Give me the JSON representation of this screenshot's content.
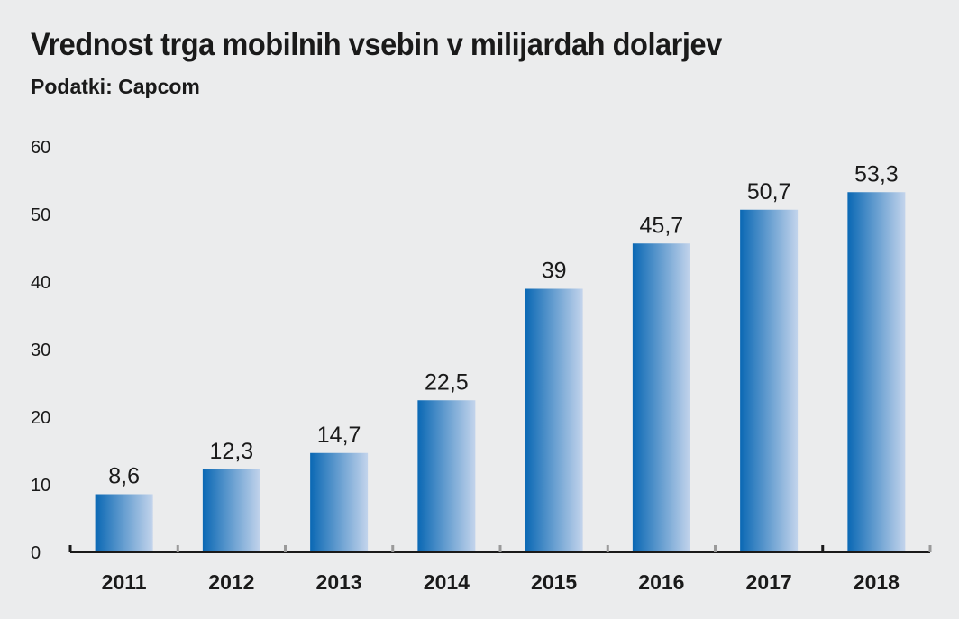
{
  "chart_data": {
    "type": "bar",
    "title": "Vrednost trga mobilnih vsebin v milijardah dolarjev",
    "subtitle": "Podatki: Capcom",
    "xlabel": "",
    "ylabel": "",
    "categories": [
      "2011",
      "2012",
      "2013",
      "2014",
      "2015",
      "2016",
      "2017",
      "2018"
    ],
    "values": [
      8.6,
      12.3,
      14.7,
      22.5,
      39,
      45.7,
      50.7,
      53.3
    ],
    "value_labels": [
      "8,6",
      "12,3",
      "14,7",
      "22,5",
      "39",
      "45,7",
      "50,7",
      "53,3"
    ],
    "ylim": [
      0,
      60
    ],
    "yticks": [
      0,
      10,
      20,
      30,
      40,
      50,
      60
    ],
    "grid": false,
    "legend": "none",
    "colors": {
      "bar_dark": "#0a68b4",
      "bar_light": "#c3d4ec",
      "axis": "#1a1a1a",
      "tick_marks": "#9a9a9a"
    }
  }
}
